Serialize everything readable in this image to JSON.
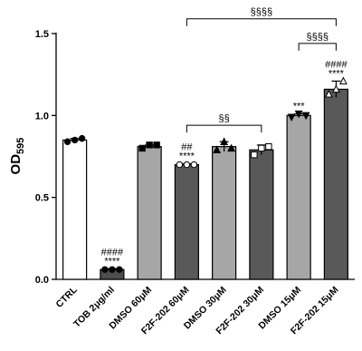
{
  "chart_data": {
    "type": "bar",
    "ylabel": "OD",
    "ylabel_sub": "595",
    "categories": [
      "CTRL",
      "TOB 2μg/ml",
      "DMSO 60μM",
      "F2F-202 60μM",
      "DMSO 30μM",
      "F2F-202 30μM",
      "DMSO 15μM",
      "F2F-202 15μM"
    ],
    "values": [
      0.85,
      0.06,
      0.81,
      0.7,
      0.81,
      0.79,
      1.0,
      1.16
    ],
    "errors": [
      0.01,
      0.005,
      0.01,
      0.005,
      0.03,
      0.03,
      0.01,
      0.05
    ],
    "colors": [
      "#ffffff",
      "#4d4d4d",
      "#a6a6a6",
      "#595959",
      "#a6a6a6",
      "#595959",
      "#a6a6a6",
      "#595959"
    ],
    "points": [
      [
        0.84,
        0.85,
        0.86
      ],
      [
        0.06,
        0.06,
        0.06
      ],
      [
        0.8,
        0.82,
        0.82
      ],
      [
        0.7,
        0.7,
        0.7
      ],
      [
        0.79,
        0.84,
        0.8
      ],
      [
        0.76,
        0.8,
        0.81
      ],
      [
        0.99,
        1.01,
        1.0
      ],
      [
        1.13,
        1.16,
        1.21
      ]
    ],
    "markers": [
      "circle",
      "circle",
      "square",
      "circle",
      "triangle",
      "square",
      "triangle-down",
      "triangle"
    ],
    "marker_fills": [
      "#000000",
      "#000000",
      "#000000",
      "#ffffff",
      "#000000",
      "#ffffff",
      "#000000",
      "#ffffff"
    ],
    "annotations": [
      null,
      [
        "####",
        "****"
      ],
      null,
      [
        "##",
        "****"
      ],
      null,
      null,
      [
        "***"
      ],
      [
        "####",
        "****"
      ]
    ],
    "brackets": [
      {
        "from": "F2F-202 60μM",
        "to": "F2F-202 30μM",
        "label": "§§"
      },
      {
        "from": "DMSO 15μM",
        "to": "F2F-202 15μM",
        "label": "§§§§"
      },
      {
        "from": "F2F-202 60μM",
        "to": "F2F-202 15μM",
        "label": "§§§§"
      }
    ],
    "ylim": [
      0,
      1.5
    ],
    "yticks": [
      {
        "value": 0,
        "label": "0.0"
      },
      0.5,
      {
        "value": 1,
        "label": "1.0"
      },
      1.5
    ]
  }
}
